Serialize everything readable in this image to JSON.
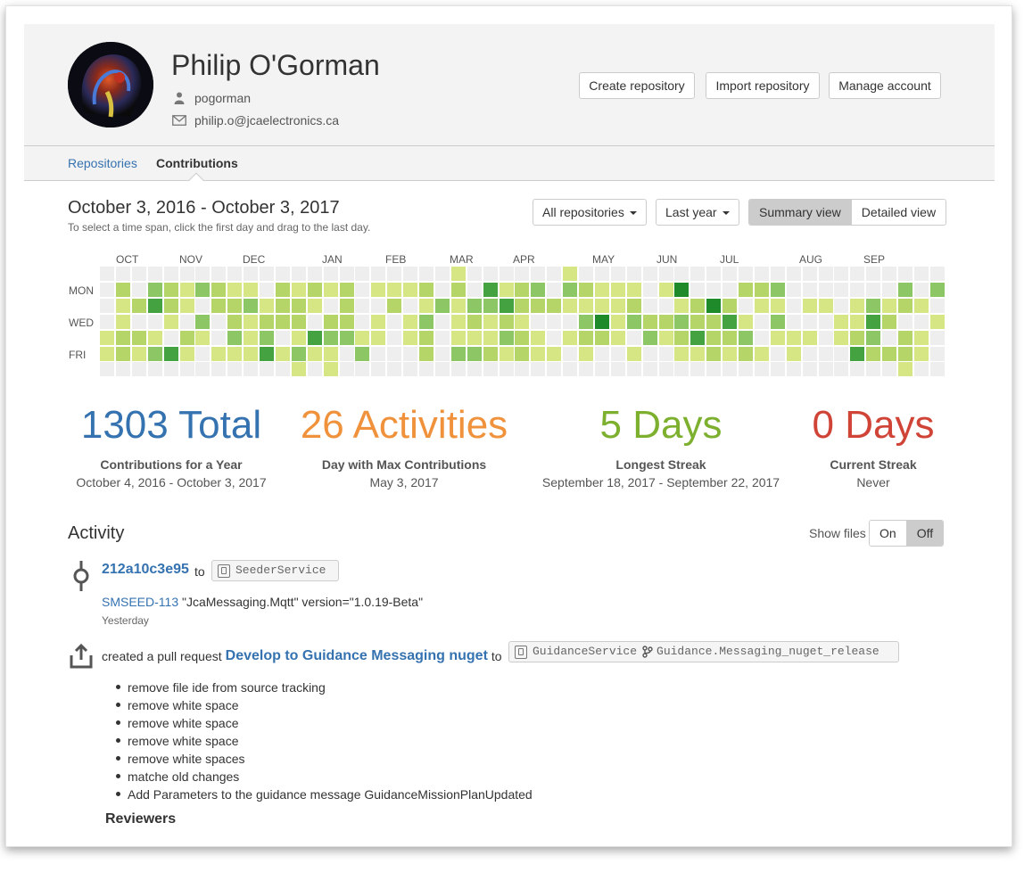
{
  "profile": {
    "name": "Philip O'Gorman",
    "username": "pogorman",
    "email": "philip.o@jcaelectronics.ca",
    "buttons": [
      "Create repository",
      "Import repository",
      "Manage account"
    ]
  },
  "tabs": [
    {
      "label": "Repositories",
      "active": false
    },
    {
      "label": "Contributions",
      "active": true
    }
  ],
  "contributions": {
    "date_range": "October 3, 2016 - October 3, 2017",
    "hint": "To select a time span, click the first day and drag to the last day.",
    "repo_filter": "All repositories",
    "period_filter": "Last year",
    "views": [
      {
        "label": "Summary view",
        "active": true
      },
      {
        "label": "Detailed view",
        "active": false
      }
    ],
    "months": [
      "OCT",
      "NOV",
      "DEC",
      "JAN",
      "FEB",
      "MAR",
      "APR",
      "MAY",
      "JUN",
      "JUL",
      "AUG",
      "SEP"
    ],
    "days": [
      "MON",
      "WED",
      "FRI"
    ],
    "colors": {
      "empty": "#eeeeee",
      "l1": "#d6e685",
      "l2": "#b5d568",
      "l3": "#8cc665",
      "l4": "#44a340",
      "l5": "#1e8a2a"
    }
  },
  "stats": [
    {
      "value": "1303 Total",
      "label": "Contributions for a Year",
      "sub": "October 4, 2016 - October 3, 2017",
      "color": "#3572b0"
    },
    {
      "value": "26 Activities",
      "label": "Day with Max Contributions",
      "sub": "May 3, 2017",
      "color": "#f0923c"
    },
    {
      "value": "5 Days",
      "label": "Longest Streak",
      "sub": "September 18, 2017 - September 22, 2017",
      "color": "#7eb030"
    },
    {
      "value": "0 Days",
      "label": "Current Streak",
      "sub": "Never",
      "color": "#d04437"
    }
  ],
  "activity": {
    "title": "Activity",
    "show_files_label": "Show files",
    "toggle": [
      {
        "label": "On",
        "active": false
      },
      {
        "label": "Off",
        "active": true
      }
    ],
    "commit": {
      "hash": "212a10c3e95",
      "to": "to",
      "repo": "SeederService",
      "issue_key": "SMSEED-113",
      "message": " \"JcaMessaging.Mqtt\" version=\"1.0.19-Beta\"",
      "when": "Yesterday"
    },
    "pull_request": {
      "prefix": "created a pull request",
      "title": "Develop to Guidance Messaging nuget",
      "to": "to",
      "repo": "GuidanceService",
      "branch": "Guidance.Messaging_nuget_release",
      "commits": [
        "remove file ide from source tracking",
        "remove white space",
        "remove white space",
        "remove white space",
        "remove white spaces",
        "matche old changes",
        "Add Parameters to the guidance message GuidanceMissionPlanUpdated"
      ]
    },
    "reviewers_label": "Reviewers"
  }
}
